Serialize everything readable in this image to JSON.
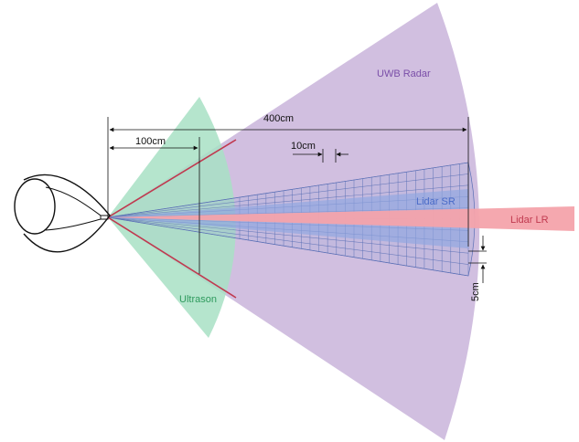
{
  "labels": {
    "uwb_radar": "UWB Radar",
    "lidar_sr": "Lidar SR",
    "lidar_lr": "Lidar LR",
    "ultrason": "Ultrason"
  },
  "dimensions": {
    "range_400": "400cm",
    "range_100": "100cm",
    "grid_10": "10cm",
    "grid_5": "5cm"
  },
  "colors": {
    "uwb_radar": "#c9b4da",
    "ultrason": "#a8e0c4",
    "lidar_sr": "#8fa6e0",
    "lidar_lr": "#f4a3ab",
    "grid": "#5a6fb5",
    "ultrason_edge": "#c0394f",
    "uwb_label": "#7a4ea8",
    "ultrason_label": "#2e9a5d",
    "lidar_sr_label": "#4a6bc8",
    "lidar_lr_label": "#c0394f"
  }
}
